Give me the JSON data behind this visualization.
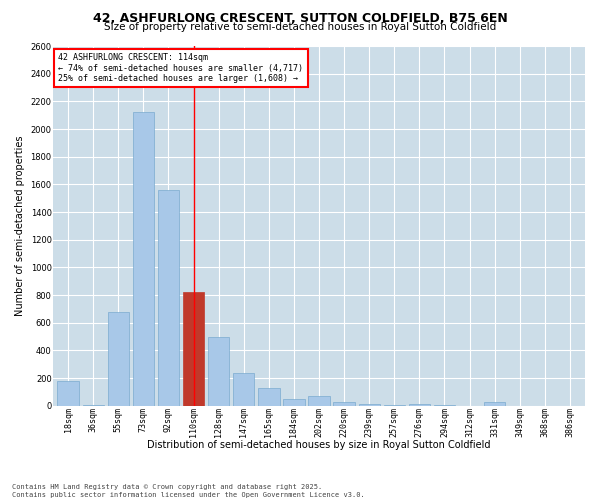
{
  "title": "42, ASHFURLONG CRESCENT, SUTTON COLDFIELD, B75 6EN",
  "subtitle": "Size of property relative to semi-detached houses in Royal Sutton Coldfield",
  "xlabel": "Distribution of semi-detached houses by size in Royal Sutton Coldfield",
  "ylabel": "Number of semi-detached properties",
  "categories": [
    "18sqm",
    "36sqm",
    "55sqm",
    "73sqm",
    "92sqm",
    "110sqm",
    "128sqm",
    "147sqm",
    "165sqm",
    "184sqm",
    "202sqm",
    "220sqm",
    "239sqm",
    "257sqm",
    "276sqm",
    "294sqm",
    "312sqm",
    "331sqm",
    "349sqm",
    "368sqm",
    "386sqm"
  ],
  "values": [
    180,
    5,
    680,
    2120,
    1560,
    820,
    500,
    240,
    130,
    50,
    70,
    30,
    10,
    5,
    10,
    5,
    2,
    30,
    2,
    2,
    2
  ],
  "highlight_index": 5,
  "bar_color": "#a8c8e8",
  "highlight_color": "#c0392b",
  "bar_edge_color": "#7aabcf",
  "background_color": "#ffffff",
  "grid_color": "#ccdde8",
  "ylim": [
    0,
    2600
  ],
  "yticks": [
    0,
    200,
    400,
    600,
    800,
    1000,
    1200,
    1400,
    1600,
    1800,
    2000,
    2200,
    2400,
    2600
  ],
  "annotation_title": "42 ASHFURLONG CRESCENT: 114sqm",
  "annotation_line1": "← 74% of semi-detached houses are smaller (4,717)",
  "annotation_line2": "25% of semi-detached houses are larger (1,608) →",
  "footnote": "Contains HM Land Registry data © Crown copyright and database right 2025.\nContains public sector information licensed under the Open Government Licence v3.0.",
  "title_fontsize": 9,
  "subtitle_fontsize": 7.5,
  "tick_fontsize": 6,
  "label_fontsize": 7,
  "annotation_fontsize": 6,
  "footnote_fontsize": 5
}
